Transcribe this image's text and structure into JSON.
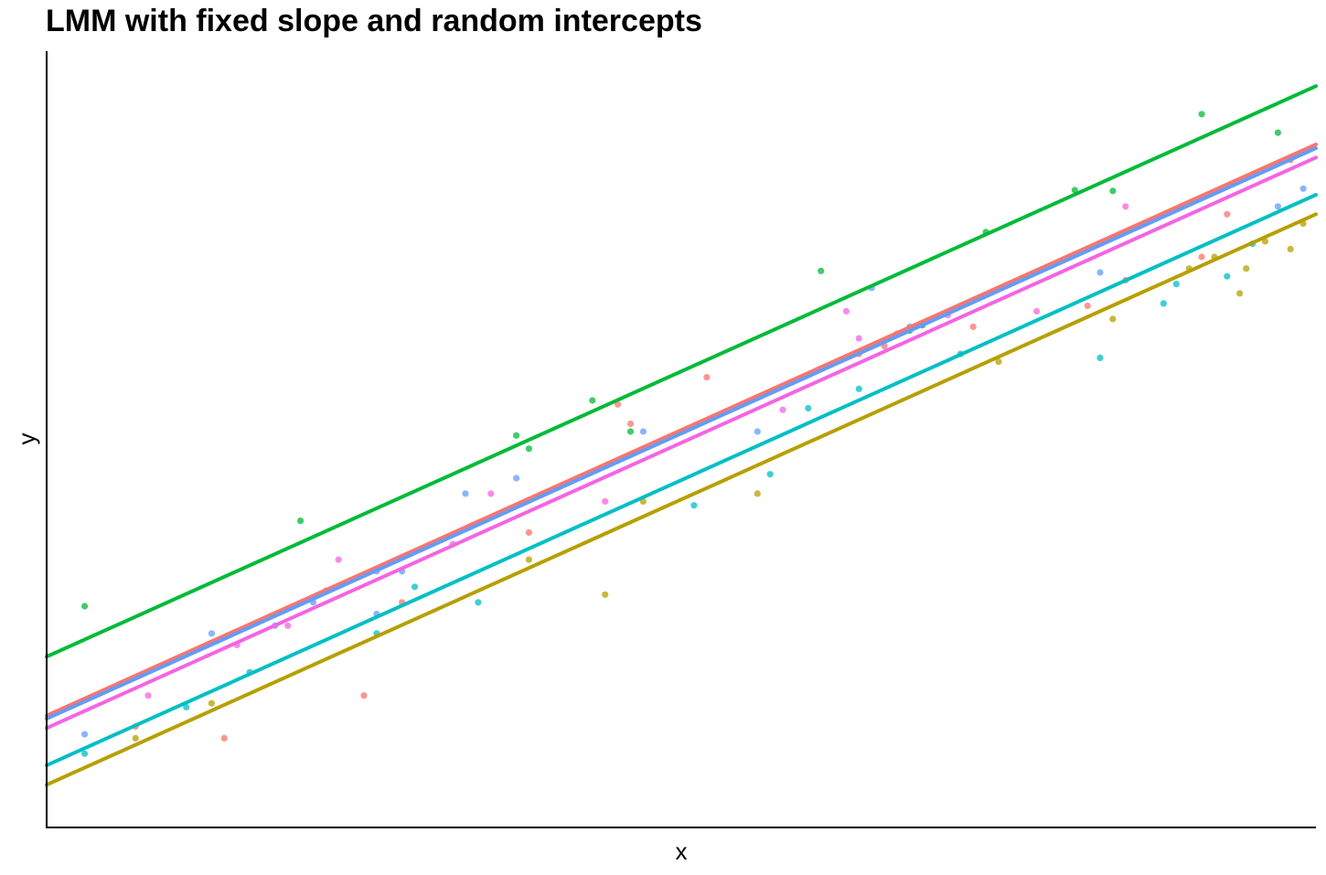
{
  "chart_data": {
    "type": "scatter",
    "title": "LMM with fixed slope and random intercepts",
    "xlabel": "x",
    "ylabel": "y",
    "grid": false,
    "legend": "none",
    "xlim": [
      0,
      1
    ],
    "ylim": [
      0,
      1
    ],
    "series": [
      {
        "color": "#F8766D",
        "line": [
          [
            0,
            0.144
          ],
          [
            1,
            0.88
          ]
        ],
        "points": [
          [
            0.25,
            0.17
          ],
          [
            0.14,
            0.115
          ],
          [
            0.28,
            0.29
          ],
          [
            0.45,
            0.545
          ],
          [
            0.46,
            0.52
          ],
          [
            0.52,
            0.58
          ],
          [
            0.64,
            0.61
          ],
          [
            0.66,
            0.62
          ],
          [
            0.73,
            0.645
          ],
          [
            0.85,
            0.705
          ],
          [
            0.91,
            0.735
          ],
          [
            0.97,
            0.855
          ],
          [
            0.98,
            0.86
          ],
          [
            0.93,
            0.79
          ],
          [
            0.38,
            0.38
          ],
          [
            0.07,
            0.13
          ],
          [
            0.82,
            0.672
          ]
        ]
      },
      {
        "color": "#B79F00",
        "line": [
          [
            0,
            0.055
          ],
          [
            1,
            0.79
          ]
        ],
        "points": [
          [
            0.07,
            0.115
          ],
          [
            0.13,
            0.16
          ],
          [
            0.38,
            0.345
          ],
          [
            0.44,
            0.3
          ],
          [
            0.47,
            0.42
          ],
          [
            0.56,
            0.43
          ],
          [
            0.75,
            0.6
          ],
          [
            0.84,
            0.655
          ],
          [
            0.9,
            0.72
          ],
          [
            0.94,
            0.688
          ],
          [
            0.96,
            0.755
          ],
          [
            0.98,
            0.745
          ],
          [
            0.99,
            0.778
          ],
          [
            0.945,
            0.72
          ],
          [
            0.92,
            0.735
          ]
        ]
      },
      {
        "color": "#00BA38",
        "line": [
          [
            0,
            0.22
          ],
          [
            1,
            0.955
          ]
        ],
        "points": [
          [
            0.03,
            0.285
          ],
          [
            0.2,
            0.395
          ],
          [
            0.37,
            0.505
          ],
          [
            0.38,
            0.488
          ],
          [
            0.43,
            0.55
          ],
          [
            0.46,
            0.51
          ],
          [
            0.61,
            0.717
          ],
          [
            0.68,
            0.64
          ],
          [
            0.69,
            0.647
          ],
          [
            0.74,
            0.767
          ],
          [
            0.81,
            0.821
          ],
          [
            0.84,
            0.82
          ],
          [
            0.91,
            0.919
          ],
          [
            0.97,
            0.895
          ]
        ]
      },
      {
        "color": "#00BFC4",
        "line": [
          [
            0,
            0.08
          ],
          [
            1,
            0.815
          ]
        ],
        "points": [
          [
            0.03,
            0.095
          ],
          [
            0.11,
            0.155
          ],
          [
            0.16,
            0.2
          ],
          [
            0.26,
            0.25
          ],
          [
            0.29,
            0.31
          ],
          [
            0.34,
            0.29
          ],
          [
            0.51,
            0.415
          ],
          [
            0.6,
            0.54
          ],
          [
            0.64,
            0.565
          ],
          [
            0.72,
            0.61
          ],
          [
            0.83,
            0.605
          ],
          [
            0.88,
            0.675
          ],
          [
            0.89,
            0.7
          ],
          [
            0.93,
            0.71
          ],
          [
            0.95,
            0.752
          ],
          [
            0.57,
            0.455
          ]
        ]
      },
      {
        "color": "#619CFF",
        "line": [
          [
            0,
            0.14
          ],
          [
            1,
            0.875
          ]
        ],
        "points": [
          [
            0.03,
            0.12
          ],
          [
            0.13,
            0.25
          ],
          [
            0.18,
            0.26
          ],
          [
            0.21,
            0.29
          ],
          [
            0.26,
            0.275
          ],
          [
            0.28,
            0.33
          ],
          [
            0.33,
            0.43
          ],
          [
            0.47,
            0.51
          ],
          [
            0.56,
            0.51
          ],
          [
            0.68,
            0.645
          ],
          [
            0.65,
            0.695
          ],
          [
            0.83,
            0.715
          ],
          [
            0.97,
            0.8
          ],
          [
            0.99,
            0.823
          ],
          [
            0.26,
            0.33
          ],
          [
            0.37,
            0.45
          ]
        ]
      },
      {
        "color": "#F564E3",
        "line": [
          [
            0,
            0.128
          ],
          [
            1,
            0.863
          ]
        ],
        "points": [
          [
            0.08,
            0.17
          ],
          [
            0.19,
            0.26
          ],
          [
            0.23,
            0.345
          ],
          [
            0.32,
            0.365
          ],
          [
            0.35,
            0.43
          ],
          [
            0.44,
            0.42
          ],
          [
            0.58,
            0.538
          ],
          [
            0.63,
            0.665
          ],
          [
            0.67,
            0.636
          ],
          [
            0.71,
            0.66
          ],
          [
            0.78,
            0.665
          ],
          [
            0.64,
            0.63
          ],
          [
            0.15,
            0.235
          ],
          [
            0.85,
            0.8
          ],
          [
            0.22,
            0.305
          ]
        ]
      }
    ]
  }
}
